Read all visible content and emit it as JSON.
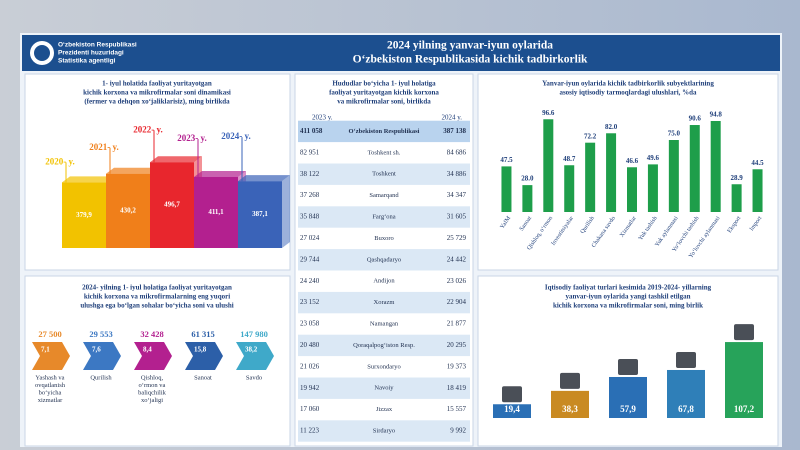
{
  "header": {
    "org": [
      "O‘zbekiston Respublikasi",
      "Prezidenti huzuridagi",
      "Statistika agentligi"
    ],
    "title": [
      "2024 yilning yanvar-iyun oylarida",
      "O‘zbekiston Respublikasida kichik tadbirkorlik"
    ]
  },
  "chart_data": [
    {
      "type": "bar",
      "title": [
        "1- iyul holatida faoliyat yuritayotgan",
        "kichik korxona va mikrofirmalar soni  dinamikasi",
        "(fermer va dehqon xo‘jaliklarisiz), ming birlikda"
      ],
      "categories": [
        "2020- y.",
        "2021- y.",
        "2022- y.",
        "2023- y.",
        "2024- y."
      ],
      "values": [
        379.9,
        430.2,
        496.7,
        411.1,
        387.1
      ],
      "value_labels": [
        "379,9",
        "430,2",
        "496,7",
        "411,1",
        "387,1"
      ],
      "colors": [
        "#f2c200",
        "#f07f1a",
        "#e8262d",
        "#b3208f",
        "#3a63b8"
      ],
      "ylim": [
        0,
        550
      ]
    },
    {
      "type": "bar",
      "title": [
        "Yanvar-iyun oylarida kichik tadbirkorlik subyektlarining",
        "asosiy iqtisodiy tarmoqlardagi ulushlari, %da"
      ],
      "categories": [
        "YaIM",
        "Sanoat",
        "Qishloq, o‘rmon",
        "Investitsiyalar",
        "Qurilish",
        "Chakana savdo",
        "Xizmatlar",
        "Yuk tashish",
        "Yuk aylanmasi",
        "Yo‘lovchi tashish",
        "Yo‘lovchi aylanmasi",
        "Eksport",
        "Import"
      ],
      "values": [
        47.5,
        28.0,
        96.6,
        48.7,
        72.2,
        82.0,
        46.6,
        49.6,
        75.0,
        90.6,
        94.8,
        28.9,
        44.5
      ],
      "value_labels": [
        "47.5",
        "28.0",
        "96.6",
        "48.7",
        "72.2",
        "82.0",
        "46.6",
        "49.6",
        "75.0",
        "90.6",
        "94.8",
        "28.9",
        "44.5"
      ],
      "color": "#1e9e4a",
      "ylim": [
        0,
        100
      ]
    },
    {
      "type": "bar",
      "title": [
        "Iqtisodiy faoliyat turlari kesimida 2019-2024- yillarning",
        "yanvar-iyun oylarida yangi tashkil etilgan",
        "kichik korxona va mikrofirmalar soni, ming birlik"
      ],
      "categories": [
        null,
        null,
        null,
        null,
        null
      ],
      "values": [
        19.4,
        38.3,
        57.9,
        67.8,
        107.2
      ],
      "value_labels": [
        "19,4",
        "38,3",
        "57,9",
        "67,8",
        "107,2"
      ],
      "colors": [
        "#2a6fb5",
        "#c98a22",
        "#2a6fb5",
        "#2f7fb8",
        "#27a35a"
      ],
      "ylim": [
        0,
        120
      ]
    }
  ],
  "table": {
    "title": [
      "Hududlar bo‘yicha 1- iyul holatiga",
      "faoliyat yuritayotgan kichik korxona",
      "va mikrofirmalar soni, birlikda"
    ],
    "columns": [
      "2023 y.",
      "2024 y."
    ],
    "rows": [
      [
        "411 058",
        "O‘zbekiston Respublikasi",
        "387 138"
      ],
      [
        "82 951",
        "Toshkent sh.",
        "84 686"
      ],
      [
        "38 122",
        "Toshkent",
        "34 886"
      ],
      [
        "37 268",
        "Samarqand",
        "34 347"
      ],
      [
        "35 848",
        "Farg‘ona",
        "31 605"
      ],
      [
        "27 024",
        "Buxoro",
        "25 729"
      ],
      [
        "29 744",
        "Qashqadaryo",
        "24 442"
      ],
      [
        "24 240",
        "Andijon",
        "23 026"
      ],
      [
        "23 152",
        "Xorazm",
        "22 904"
      ],
      [
        "23 058",
        "Namangan",
        "21 877"
      ],
      [
        "20 480",
        "Qoraqalpog‘iston Resp.",
        "20 295"
      ],
      [
        "21 026",
        "Surxondaryo",
        "19 373"
      ],
      [
        "19 942",
        "Navoiy",
        "18 419"
      ],
      [
        "17 060",
        "Jizzax",
        "15 557"
      ],
      [
        "11 223",
        "Sirdaryo",
        "9 992"
      ]
    ]
  },
  "sectors": {
    "title": [
      "2024- yilning 1- iyul holatiga faoliyat yuritayotgan",
      "kichik korxona va mikrofirmalarning eng yuqori",
      "ulushga ega bo‘lgan sohalar bo‘yicha soni va ulushi"
    ],
    "items": [
      {
        "count": "27 500",
        "share": "7,1",
        "label": [
          "Yashash va",
          "ovqatlanish",
          "bo‘yicha",
          "xizmatlar"
        ],
        "color": "#e7892a"
      },
      {
        "count": "29 553",
        "share": "7,6",
        "label": [
          "Qurilish"
        ],
        "color": "#3c78c3"
      },
      {
        "count": "32 428",
        "share": "8,4",
        "label": [
          "Qishloq,",
          "o‘rmon va",
          "baliqchilik",
          "xo‘jaligi"
        ],
        "color": "#b3208f"
      },
      {
        "count": "61 315",
        "share": "15,8",
        "label": [
          "Sanoat"
        ],
        "color": "#2c5fa8"
      },
      {
        "count": "147 980",
        "share": "38,2",
        "label": [
          "Savdo"
        ],
        "color": "#3fa9c9"
      }
    ]
  }
}
